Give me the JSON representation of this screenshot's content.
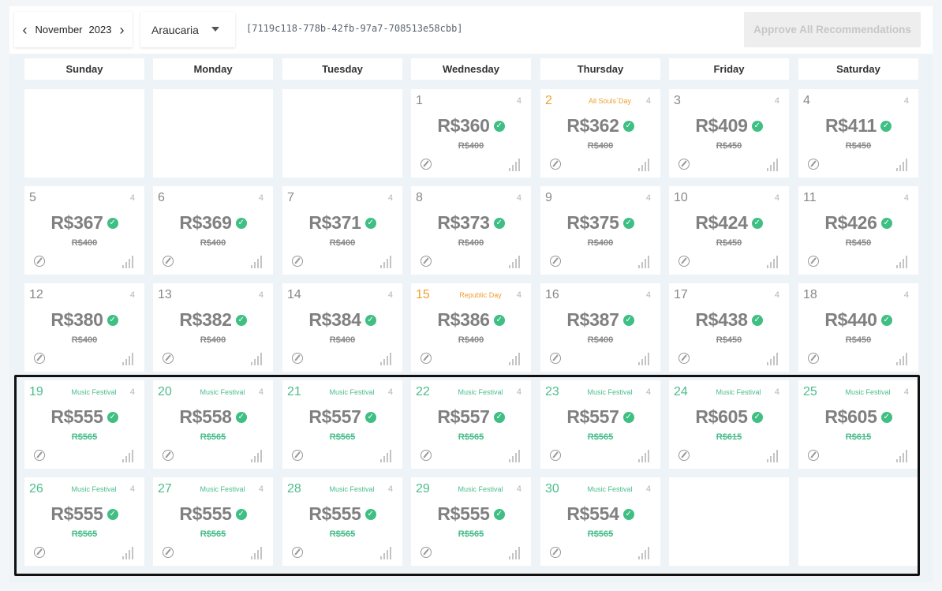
{
  "toolbar": {
    "month": "November",
    "year": "2023",
    "city": "Araucaria",
    "uuid": "[7119c118-778b-42fb-97a7-708513e58cbb]",
    "approve_label": "Approve All Recommendations"
  },
  "weekdays": [
    "Sunday",
    "Monday",
    "Tuesday",
    "Wednesday",
    "Thursday",
    "Friday",
    "Saturday"
  ],
  "colors": {
    "accent_green": "#3fbf84",
    "holiday_orange": "#f0a030",
    "selection_border": "#111111"
  },
  "days": [
    {
      "day": "1",
      "event": "",
      "count": "4",
      "price": "R$360",
      "original": "R$400",
      "type": "normal"
    },
    {
      "day": "2",
      "event": "All Souls`Day",
      "count": "4",
      "price": "R$362",
      "original": "R$400",
      "type": "holiday"
    },
    {
      "day": "3",
      "event": "",
      "count": "4",
      "price": "R$409",
      "original": "R$450",
      "type": "normal"
    },
    {
      "day": "4",
      "event": "",
      "count": "4",
      "price": "R$411",
      "original": "R$450",
      "type": "normal"
    },
    {
      "day": "5",
      "event": "",
      "count": "4",
      "price": "R$367",
      "original": "R$400",
      "type": "normal"
    },
    {
      "day": "6",
      "event": "",
      "count": "4",
      "price": "R$369",
      "original": "R$400",
      "type": "normal"
    },
    {
      "day": "7",
      "event": "",
      "count": "4",
      "price": "R$371",
      "original": "R$400",
      "type": "normal"
    },
    {
      "day": "8",
      "event": "",
      "count": "4",
      "price": "R$373",
      "original": "R$400",
      "type": "normal"
    },
    {
      "day": "9",
      "event": "",
      "count": "4",
      "price": "R$375",
      "original": "R$400",
      "type": "normal"
    },
    {
      "day": "10",
      "event": "",
      "count": "4",
      "price": "R$424",
      "original": "R$450",
      "type": "normal"
    },
    {
      "day": "11",
      "event": "",
      "count": "4",
      "price": "R$426",
      "original": "R$450",
      "type": "normal"
    },
    {
      "day": "12",
      "event": "",
      "count": "4",
      "price": "R$380",
      "original": "R$400",
      "type": "normal"
    },
    {
      "day": "13",
      "event": "",
      "count": "4",
      "price": "R$382",
      "original": "R$400",
      "type": "normal"
    },
    {
      "day": "14",
      "event": "",
      "count": "4",
      "price": "R$384",
      "original": "R$400",
      "type": "normal"
    },
    {
      "day": "15",
      "event": "Republic Day",
      "count": "4",
      "price": "R$386",
      "original": "R$400",
      "type": "holiday"
    },
    {
      "day": "16",
      "event": "",
      "count": "4",
      "price": "R$387",
      "original": "R$400",
      "type": "normal"
    },
    {
      "day": "17",
      "event": "",
      "count": "4",
      "price": "R$438",
      "original": "R$450",
      "type": "normal"
    },
    {
      "day": "18",
      "event": "",
      "count": "4",
      "price": "R$440",
      "original": "R$450",
      "type": "normal"
    },
    {
      "day": "19",
      "event": "Music Festival",
      "count": "4",
      "price": "R$555",
      "original": "R$565",
      "type": "event"
    },
    {
      "day": "20",
      "event": "Music Festival",
      "count": "4",
      "price": "R$558",
      "original": "R$565",
      "type": "event"
    },
    {
      "day": "21",
      "event": "Music Festival",
      "count": "4",
      "price": "R$557",
      "original": "R$565",
      "type": "event"
    },
    {
      "day": "22",
      "event": "Music Festival",
      "count": "4",
      "price": "R$557",
      "original": "R$565",
      "type": "event"
    },
    {
      "day": "23",
      "event": "Music Festival",
      "count": "4",
      "price": "R$557",
      "original": "R$565",
      "type": "event"
    },
    {
      "day": "24",
      "event": "Music Festival",
      "count": "4",
      "price": "R$605",
      "original": "R$615",
      "type": "event"
    },
    {
      "day": "25",
      "event": "Music Festival",
      "count": "4",
      "price": "R$605",
      "original": "R$615",
      "type": "event"
    },
    {
      "day": "26",
      "event": "Music Festival",
      "count": "4",
      "price": "R$555",
      "original": "R$565",
      "type": "event"
    },
    {
      "day": "27",
      "event": "Music Festival",
      "count": "4",
      "price": "R$555",
      "original": "R$565",
      "type": "event"
    },
    {
      "day": "28",
      "event": "Music Festival",
      "count": "4",
      "price": "R$555",
      "original": "R$565",
      "type": "event"
    },
    {
      "day": "29",
      "event": "Music Festival",
      "count": "4",
      "price": "R$555",
      "original": "R$565",
      "type": "event"
    },
    {
      "day": "30",
      "event": "Music Festival",
      "count": "4",
      "price": "R$554",
      "original": "R$565",
      "type": "event"
    }
  ],
  "first_weekday_index": 3
}
